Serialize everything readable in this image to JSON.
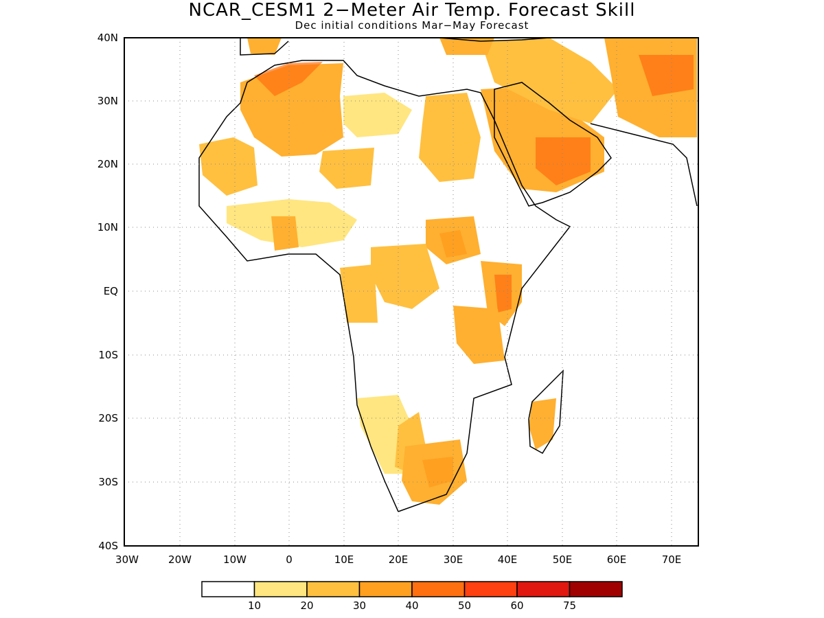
{
  "title": "NCAR_CESM1 2−Meter Air Temp. Forecast Skill",
  "subtitle": "Dec initial conditions  Mar−May Forecast",
  "map": {
    "lat_labels": [
      "40N",
      "30N",
      "20N",
      "10N",
      "EQ",
      "10S",
      "20S",
      "30S",
      "40S"
    ],
    "lon_labels": [
      "30W",
      "20W",
      "10W",
      "0",
      "10E",
      "20E",
      "30E",
      "40E",
      "50E",
      "60E",
      "70E"
    ],
    "grid_lines": "dotted",
    "region": "Africa and Middle East"
  },
  "colorbar": {
    "labels": [
      "10",
      "20",
      "30",
      "40",
      "50",
      "60",
      "75"
    ],
    "colors": [
      "#ffffff",
      "#ffe680",
      "#ffc040",
      "#ffa020",
      "#ff7010",
      "#ff4010",
      "#e01810",
      "#a00000"
    ]
  }
}
